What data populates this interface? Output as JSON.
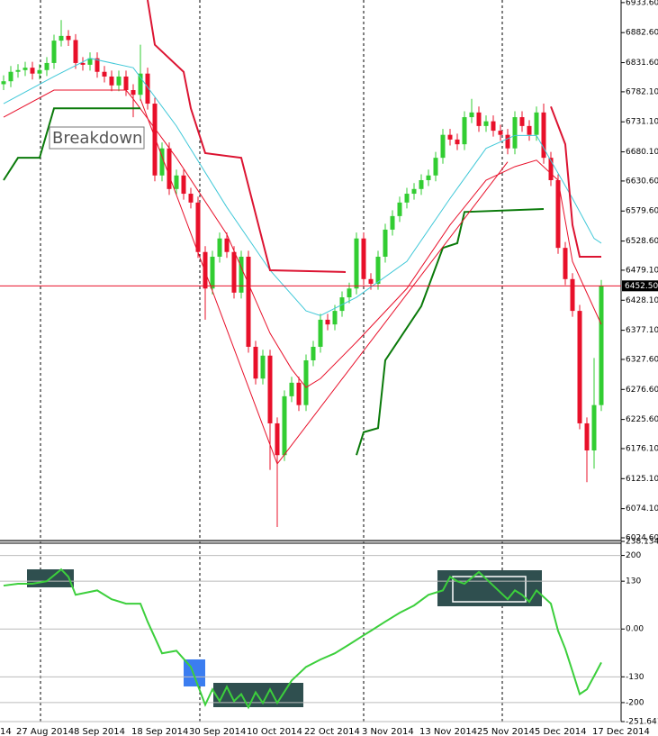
{
  "chart_data": [
    {
      "type": "candlestick",
      "left_edge_label": "14",
      "annotation": "Breakdown",
      "up_color": "#32cd32",
      "down_color": "#e8102a",
      "categories": [
        null,
        null,
        "27 Aug 2014",
        null,
        null,
        null,
        null,
        null,
        null,
        null,
        "8 Sep 2014",
        null,
        null,
        null,
        null,
        null,
        null,
        null,
        "18 Sep 2014",
        null,
        null,
        null,
        null,
        null,
        null,
        null,
        "30 Sep 2014",
        null,
        null,
        null,
        null,
        null,
        null,
        null,
        "10 Oct 2014",
        null,
        null,
        null,
        null,
        null,
        null,
        null,
        "22 Oct 2014",
        null,
        null,
        null,
        null,
        null,
        null,
        null,
        "3 Nov 2014",
        null,
        null,
        null,
        null,
        null,
        null,
        null,
        "13 Nov 2014",
        null,
        null,
        null,
        null,
        null,
        null,
        null,
        "25 Nov 2014",
        null,
        null,
        null,
        null,
        null,
        null,
        null,
        "5 Dec 2014",
        null,
        null,
        null,
        null,
        null,
        null,
        null,
        "17 Dec 2014",
        null
      ],
      "open": [
        6795,
        6800,
        6816,
        6819,
        6823,
        6813,
        6819,
        6831,
        6869,
        6877,
        6870,
        6831,
        6828,
        6839,
        6816,
        6808,
        6793,
        6808,
        6785,
        6777,
        6813,
        6762,
        6640,
        6686,
        6617,
        6640,
        6609,
        6594,
        6510,
        6448,
        6502,
        6533,
        6510,
        6441,
        6502,
        6349,
        6295,
        6334,
        6219,
        6165,
        6265,
        6288,
        6250,
        6326,
        6349,
        6395,
        6387,
        6410,
        6433,
        6448,
        6533,
        6464,
        6456,
        6502,
        6548,
        6571,
        6594,
        6609,
        6617,
        6632,
        6640,
        6670,
        6709,
        6701,
        6693,
        6739,
        6747,
        6724,
        6732,
        6716,
        6709,
        6686,
        6739,
        6724,
        6709,
        6747,
        6670,
        6632,
        6517,
        6464,
        6410,
        6219,
        6173,
        6250
      ],
      "high": [
        6810,
        6826,
        6829,
        6833,
        6833,
        6829,
        6841,
        6879,
        6904,
        6887,
        6880,
        6841,
        6849,
        6849,
        6826,
        6818,
        6818,
        6818,
        6795,
        6862,
        6823,
        6772,
        6696,
        6696,
        6650,
        6650,
        6619,
        6604,
        6520,
        6512,
        6543,
        6543,
        6520,
        6512,
        6512,
        6359,
        6344,
        6344,
        6229,
        6275,
        6298,
        6298,
        6336,
        6359,
        6405,
        6405,
        6420,
        6443,
        6458,
        6543,
        6543,
        6474,
        6512,
        6558,
        6581,
        6604,
        6619,
        6627,
        6642,
        6650,
        6680,
        6719,
        6719,
        6711,
        6749,
        6770,
        6757,
        6742,
        6742,
        6726,
        6719,
        6749,
        6749,
        6734,
        6757,
        6762,
        6680,
        6642,
        6527,
        6474,
        6420,
        6229,
        6330,
        6462.5
      ],
      "low": [
        6785,
        6790,
        6806,
        6809,
        6803,
        6803,
        6809,
        6821,
        6859,
        6860,
        6821,
        6818,
        6818,
        6806,
        6798,
        6783,
        6783,
        6775,
        6739,
        6767,
        6752,
        6630,
        6630,
        6607,
        6607,
        6599,
        6584,
        6500,
        6395,
        6438,
        6492,
        6500,
        6431,
        6431,
        6339,
        6285,
        6285,
        6140,
        6043,
        6155,
        6255,
        6240,
        6240,
        6316,
        6339,
        6377,
        6377,
        6400,
        6423,
        6438,
        6454,
        6446,
        6446,
        6492,
        6538,
        6561,
        6584,
        6599,
        6607,
        6622,
        6630,
        6660,
        6691,
        6683,
        6683,
        6729,
        6714,
        6714,
        6706,
        6699,
        6676,
        6676,
        6714,
        6699,
        6699,
        6660,
        6622,
        6507,
        6454,
        6400,
        6209,
        6119,
        6142,
        6240
      ],
      "close": [
        6800,
        6816,
        6819,
        6823,
        6813,
        6819,
        6831,
        6869,
        6877,
        6870,
        6831,
        6828,
        6839,
        6816,
        6808,
        6793,
        6808,
        6785,
        6777,
        6813,
        6762,
        6640,
        6686,
        6617,
        6640,
        6609,
        6594,
        6510,
        6448,
        6502,
        6533,
        6510,
        6441,
        6502,
        6349,
        6295,
        6334,
        6219,
        6165,
        6265,
        6288,
        6250,
        6326,
        6349,
        6395,
        6387,
        6410,
        6433,
        6448,
        6533,
        6464,
        6456,
        6502,
        6548,
        6571,
        6594,
        6609,
        6617,
        6632,
        6640,
        6670,
        6709,
        6701,
        6693,
        6739,
        6747,
        6724,
        6732,
        6716,
        6709,
        6686,
        6739,
        6724,
        6709,
        6747,
        6670,
        6632,
        6517,
        6464,
        6410,
        6219,
        6173,
        6250,
        6452.5
      ],
      "overlays": [
        {
          "color": "#e8102a",
          "width": 1,
          "x": [
            0,
            7,
            17,
            18,
            24,
            31,
            37,
            40,
            42,
            44,
            49,
            56,
            62,
            67,
            71,
            74,
            77,
            79,
            83
          ],
          "values": [
            6739,
            6785,
            6785,
            6770,
            6670,
            6540,
            6372,
            6311,
            6280,
            6295,
            6357,
            6448,
            6556,
            6632,
            6655,
            6666,
            6632,
            6494,
            6387
          ]
        },
        {
          "color": "#40c8d8",
          "width": 1,
          "x": [
            0,
            7,
            12,
            18,
            24,
            31,
            37,
            42,
            44,
            49,
            56,
            62,
            67,
            71,
            74,
            79,
            82,
            83
          ],
          "values": [
            6762,
            6808,
            6839,
            6823,
            6724,
            6586,
            6479,
            6410,
            6402,
            6433,
            6494,
            6601,
            6686,
            6708,
            6708,
            6601,
            6533,
            6525
          ]
        },
        {
          "color": "#dc1432",
          "width": 2,
          "x": [
            20,
            21,
            25,
            26,
            28,
            33,
            37,
            47.5,
            null,
            76,
            78,
            79,
            80,
            83
          ],
          "values": [
            6938,
            6862,
            6816,
            6754,
            6678,
            6670,
            6479,
            6476,
            null,
            6757,
            6693,
            6556,
            6502,
            6502
          ]
        },
        {
          "color": "#0a7a0a",
          "width": 2,
          "x": [
            0,
            2,
            5,
            7,
            19,
            null,
            49,
            50,
            52,
            53,
            58,
            61,
            63,
            64,
            75
          ],
          "values": [
            6632,
            6670,
            6670,
            6754,
            6754,
            null,
            6165,
            6204,
            6211,
            6326,
            6418,
            6517,
            6525,
            6578,
            6583
          ]
        },
        {
          "color": "#e8102a",
          "width": 1,
          "x": [
            19,
            38,
            70
          ],
          "values": [
            6770,
            6150,
            6663
          ]
        }
      ],
      "last_price": {
        "value": 6452.5,
        "label": "6452.50"
      },
      "ylim": [
        6020,
        6938
      ],
      "yticks": [
        {
          "value": 6933.6,
          "label": "6933.60"
        },
        {
          "value": 6882.6,
          "label": "6882.60"
        },
        {
          "value": 6831.6,
          "label": "6831.60"
        },
        {
          "value": 6782.1,
          "label": "6782.10"
        },
        {
          "value": 6731.1,
          "label": "6731.10"
        },
        {
          "value": 6680.1,
          "label": "6680.10"
        },
        {
          "value": 6630.6,
          "label": "6630.60"
        },
        {
          "value": 6579.6,
          "label": "6579.60"
        },
        {
          "value": 6528.6,
          "label": "6528.60"
        },
        {
          "value": 6479.1,
          "label": "6479.10"
        },
        {
          "value": 6428.1,
          "label": "6428.10"
        },
        {
          "value": 6377.1,
          "label": "6377.10"
        },
        {
          "value": 6327.6,
          "label": "6327.60"
        },
        {
          "value": 6276.6,
          "label": "6276.60"
        },
        {
          "value": 6225.6,
          "label": "6225.60"
        },
        {
          "value": 6176.1,
          "label": "6176.10"
        },
        {
          "value": 6125.1,
          "label": "6125.10"
        },
        {
          "value": 6074.1,
          "label": "6074.10"
        },
        {
          "value": 6024.6,
          "label": "6024.60"
        }
      ]
    },
    {
      "type": "line",
      "x": [
        0,
        2,
        4,
        6,
        8,
        9,
        10,
        13,
        15,
        17,
        19,
        20,
        22,
        24,
        26,
        28,
        29,
        30,
        31,
        32,
        33,
        34,
        35,
        36,
        37,
        38,
        40,
        42,
        44,
        46,
        48,
        50,
        51,
        53,
        55,
        57,
        59,
        61,
        62,
        63,
        64,
        66,
        68,
        70,
        71,
        72,
        73,
        74,
        76,
        77,
        78,
        79,
        80,
        81,
        82,
        83
      ],
      "series": [
        {
          "color": "#3ccf3c",
          "values": [
            118,
            123,
            123,
            130,
            162,
            142,
            93,
            105,
            81,
            69,
            69,
            20,
            -66,
            -59,
            -103,
            -206,
            -164,
            -196,
            -157,
            -196,
            -177,
            -213,
            -172,
            -201,
            -164,
            -201,
            -140,
            -103,
            -83,
            -66,
            -42,
            -17,
            -5,
            20,
            44,
            64,
            93,
            105,
            142,
            130,
            123,
            155,
            118,
            81,
            105,
            93,
            74,
            105,
            69,
            -5,
            -54,
            -115,
            -177,
            -164,
            -128,
            -91
          ]
        }
      ],
      "grid": true,
      "ylim": [
        -251.641,
        238.134
      ],
      "yticks": [
        238.134,
        200,
        130,
        {
          "value": 0,
          "label": "0.00"
        },
        -130,
        -200,
        -251.641
      ]
    }
  ]
}
